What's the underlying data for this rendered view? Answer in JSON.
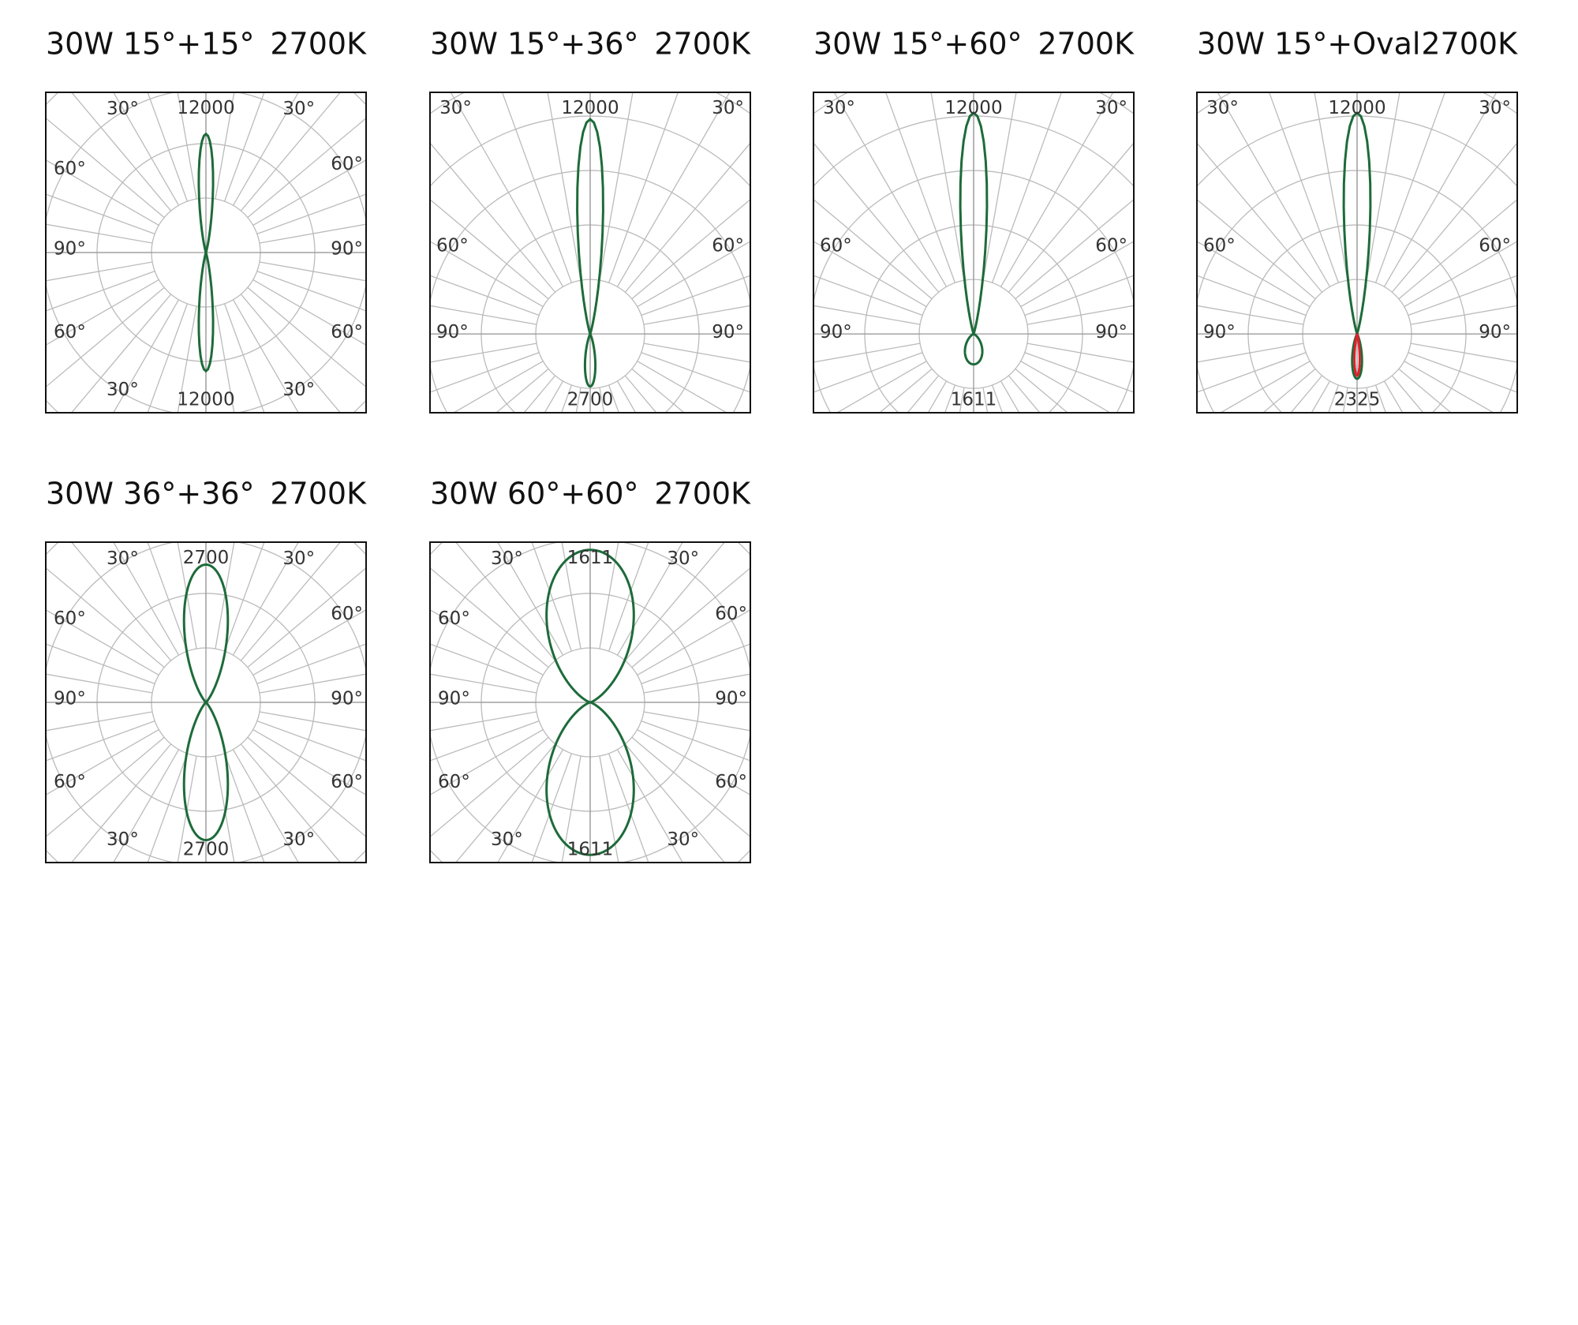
{
  "panels": [
    {
      "name": "30W 15°+15°",
      "cct": "2700K",
      "top_value": "12000",
      "bottom_value": "12000",
      "angle_labels": [
        "30°",
        "30°",
        "60°",
        "60°",
        "90°",
        "90°",
        "60°",
        "60°",
        "30°",
        "30°"
      ]
    },
    {
      "name": "30W 15°+36°",
      "cct": "2700K",
      "top_value": "12000",
      "bottom_value": "2700",
      "angle_labels": [
        "30°",
        "30°",
        "60°",
        "60°",
        "90°",
        "90°"
      ]
    },
    {
      "name": "30W 15°+60°",
      "cct": "2700K",
      "top_value": "12000",
      "bottom_value": "1611",
      "angle_labels": [
        "30°",
        "30°",
        "60°",
        "60°",
        "90°",
        "90°"
      ]
    },
    {
      "name": "30W 15°+Oval",
      "cct": "2700K",
      "top_value": "12000",
      "bottom_value": "2325",
      "angle_labels": [
        "30°",
        "30°",
        "60°",
        "60°",
        "90°",
        "90°"
      ]
    },
    {
      "name": "30W 36°+36°",
      "cct": "2700K",
      "top_value": "2700",
      "bottom_value": "2700",
      "angle_labels": [
        "30°",
        "30°",
        "60°",
        "60°",
        "90°",
        "90°",
        "60°",
        "60°",
        "30°",
        "30°"
      ]
    },
    {
      "name": "30W 60°+60°",
      "cct": "2700K",
      "top_value": "1611",
      "bottom_value": "1611",
      "angle_labels": [
        "30°",
        "30°",
        "60°",
        "60°",
        "90°",
        "90°",
        "60°",
        "60°",
        "30°",
        "30°"
      ]
    }
  ]
}
